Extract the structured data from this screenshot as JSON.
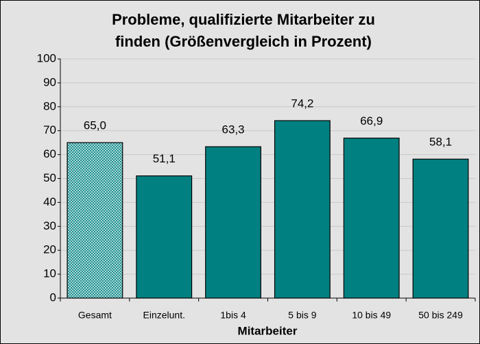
{
  "chart_data": {
    "type": "bar",
    "title": [
      "Probleme, qualifizierte Mitarbeiter zu",
      "finden (Größenvergleich in Prozent)"
    ],
    "x_label": "Mitarbeiter",
    "categories": [
      "Gesamt",
      "Einzelunt.",
      "1bis 4",
      "5 bis 9",
      "10 bis 49",
      "50 bis 249"
    ],
    "values": [
      65.0,
      51.1,
      63.3,
      74.2,
      66.9,
      58.1
    ],
    "value_labels": [
      "65,0",
      "51,1",
      "63,3",
      "74,2",
      "66,9",
      "58,1"
    ],
    "color": "#008080",
    "bar_styles": [
      "crosshatch",
      "solid",
      "solid",
      "solid",
      "solid",
      "solid"
    ],
    "ylim": [
      0,
      100
    ],
    "yticks": [
      0,
      10,
      20,
      30,
      40,
      50,
      60,
      70,
      80,
      90,
      100
    ],
    "grid": true
  }
}
